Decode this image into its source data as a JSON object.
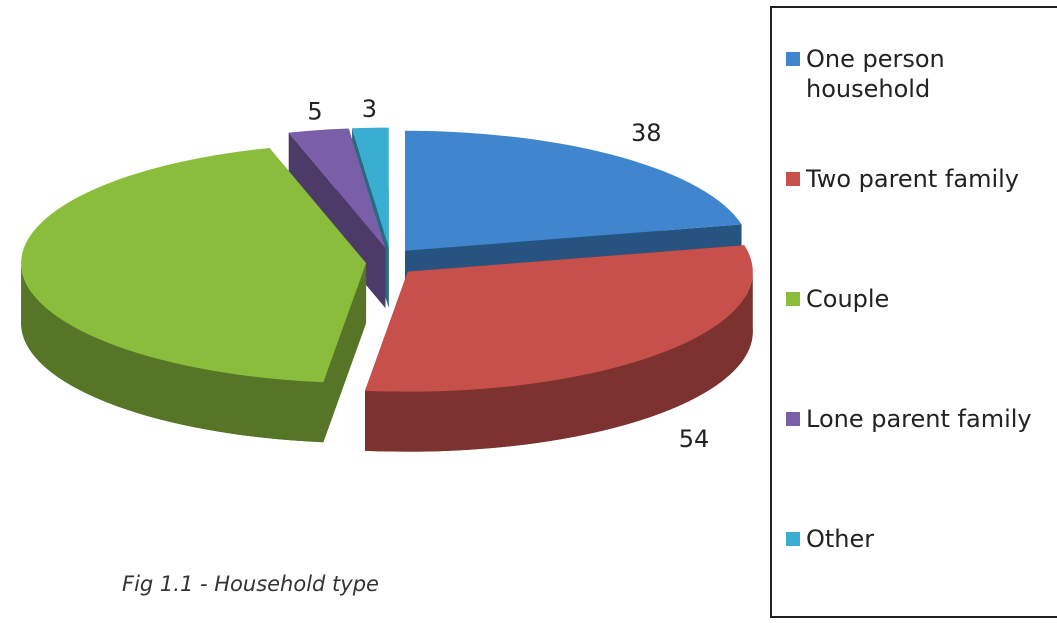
{
  "chart_data": {
    "type": "pie",
    "caption": "Fig 1.1 - Household type",
    "categories": [
      "One person household",
      "Two parent family",
      "Couple",
      "Lone parent family",
      "Other"
    ],
    "values": [
      38,
      54,
      77,
      5,
      3
    ],
    "colors": [
      "#3f86cf",
      "#c8504b",
      "#8bbd3d",
      "#7a5fa8",
      "#3aaed2"
    ],
    "legend": "right"
  }
}
